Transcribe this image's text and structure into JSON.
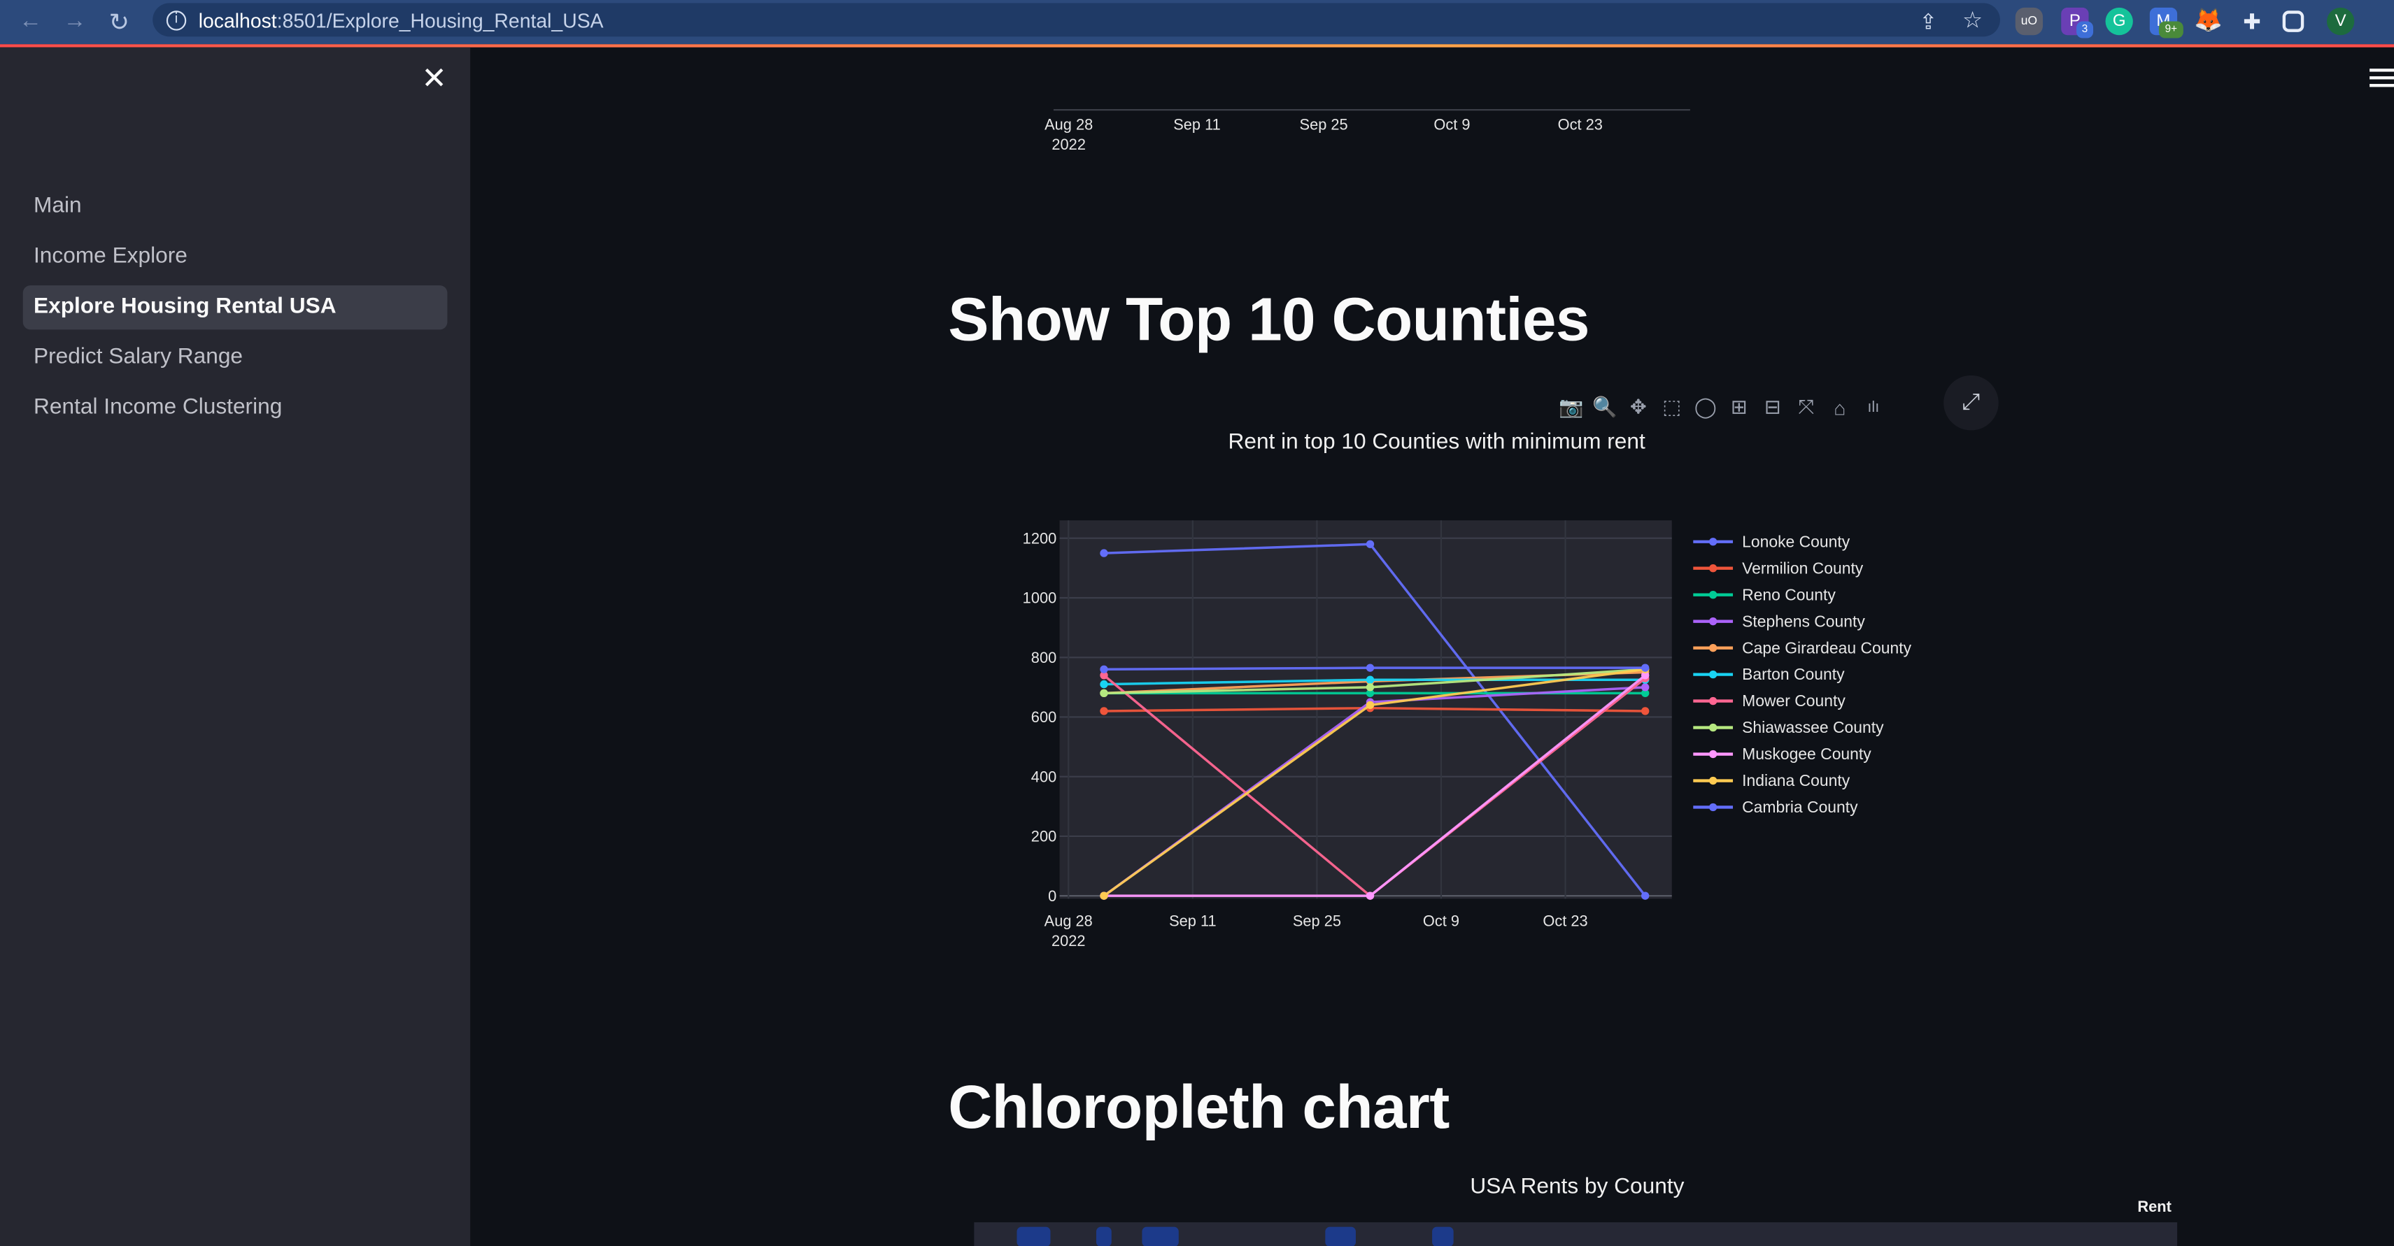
{
  "browser": {
    "url_host": "localhost",
    "url_path": ":8501/Explore_Housing_Rental_USA",
    "extensions": [
      "uBlock",
      "P",
      "Grammarly",
      "M",
      "Fox",
      "Puzzle",
      "Sidebar",
      "V"
    ],
    "ext_badges": {
      "p": "3",
      "m": "9+"
    },
    "profile_initial": "V"
  },
  "sidebar": {
    "close": "✕",
    "items": [
      {
        "label": "Main",
        "active": false
      },
      {
        "label": "Income Explore",
        "active": false
      },
      {
        "label": "Explore Housing Rental USA",
        "active": true
      },
      {
        "label": "Predict Salary Range",
        "active": false
      },
      {
        "label": "Rental Income Clustering",
        "active": false
      }
    ]
  },
  "main": {
    "top_axis_ticks": [
      {
        "line1": "Aug 28",
        "line2": "2022"
      },
      {
        "line1": "Sep 11",
        "line2": ""
      },
      {
        "line1": "Sep 25",
        "line2": ""
      },
      {
        "line1": "Oct 9",
        "line2": ""
      },
      {
        "line1": "Oct 23",
        "line2": ""
      }
    ],
    "section1_heading": "Show Top 10 Counties",
    "section2_heading": "Chloropleth chart",
    "map_title": "USA Rents by County",
    "map_colorbar_title": "Rent"
  },
  "chart_data": {
    "type": "line",
    "title": "Rent in top 10 Counties with minimum rent",
    "xlabel": "",
    "ylabel": "",
    "x": [
      "2022-09-01",
      "2022-10-01",
      "2022-11-01"
    ],
    "x_ticks": [
      {
        "date": "2022-08-28",
        "line1": "Aug 28",
        "line2": "2022"
      },
      {
        "date": "2022-09-11",
        "line1": "Sep 11",
        "line2": ""
      },
      {
        "date": "2022-09-25",
        "line1": "Sep 25",
        "line2": ""
      },
      {
        "date": "2022-10-09",
        "line1": "Oct 9",
        "line2": ""
      },
      {
        "date": "2022-10-23",
        "line1": "Oct 23",
        "line2": ""
      }
    ],
    "y_ticks": [
      0,
      200,
      400,
      600,
      800,
      1000,
      1200
    ],
    "xlim": [
      "2022-08-27",
      "2022-11-04"
    ],
    "ylim": [
      -10,
      1260
    ],
    "grid": true,
    "legend_position": "right",
    "series": [
      {
        "name": "Lonoke County",
        "color": "#636efa",
        "values": [
          1150,
          1180,
          0
        ]
      },
      {
        "name": "Vermilion County",
        "color": "#ef553b",
        "values": [
          620,
          630,
          620
        ]
      },
      {
        "name": "Reno County",
        "color": "#00cc96",
        "values": [
          680,
          680,
          680
        ]
      },
      {
        "name": "Stephens County",
        "color": "#ab63fa",
        "values": [
          0,
          650,
          700
        ]
      },
      {
        "name": "Cape Girardeau County",
        "color": "#ffa15a",
        "values": [
          680,
          720,
          750
        ]
      },
      {
        "name": "Barton County",
        "color": "#19d3f3",
        "values": [
          710,
          725,
          725
        ]
      },
      {
        "name": "Mower County",
        "color": "#ff6692",
        "values": [
          740,
          0,
          730
        ]
      },
      {
        "name": "Shiawassee County",
        "color": "#b6e880",
        "values": [
          680,
          700,
          760
        ]
      },
      {
        "name": "Muskogee County",
        "color": "#ff97ff",
        "values": [
          0,
          0,
          740
        ]
      },
      {
        "name": "Indiana County",
        "color": "#fecb52",
        "values": [
          0,
          640,
          760
        ]
      },
      {
        "name": "Cambria County",
        "color": "#636efa",
        "values": [
          760,
          765,
          765
        ]
      }
    ]
  }
}
